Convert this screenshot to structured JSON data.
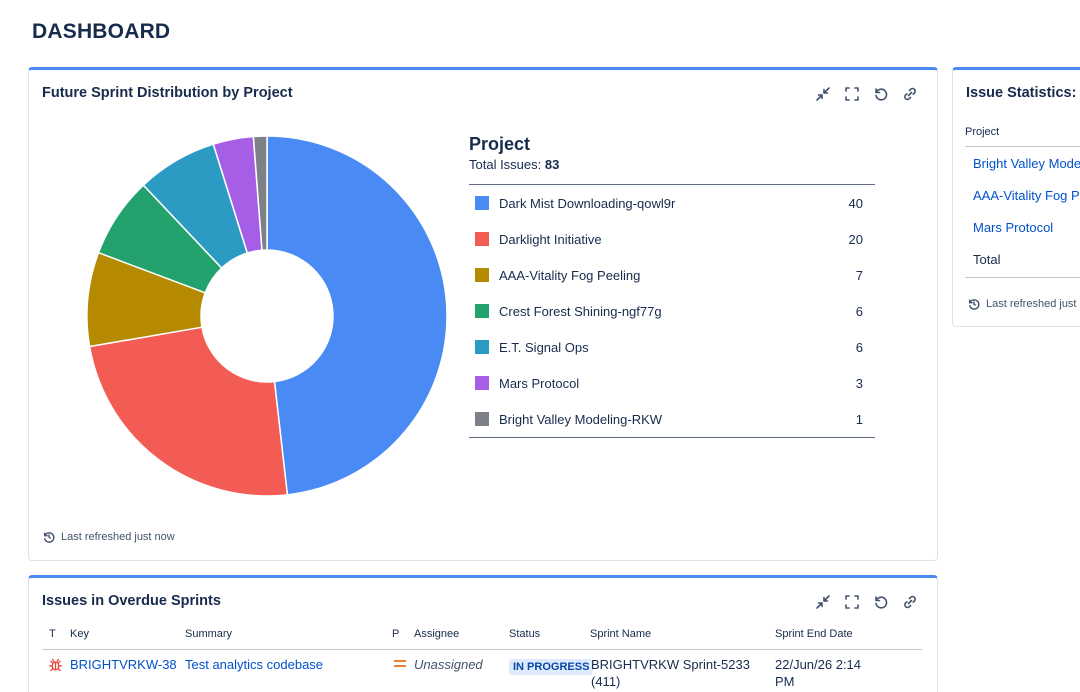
{
  "page": {
    "title": "DASHBOARD"
  },
  "gadget_sprint": {
    "title": "Future Sprint Distribution by Project",
    "legend_title": "Project",
    "total_label": "Total Issues:",
    "total_value": "83",
    "refresh_text": "Last refreshed just now",
    "chart_data": {
      "type": "pie",
      "categories": [
        "Dark Mist Downloading-qowl9r",
        "Darklight Initiative",
        "AAA-Vitality Fog Peeling",
        "Crest Forest Shining-ngf77g",
        "E.T. Signal Ops",
        "Mars Protocol",
        "Bright Valley Modeling-RKW"
      ],
      "values": [
        40,
        20,
        7,
        6,
        6,
        3,
        1
      ],
      "colors": [
        "#4a8af4",
        "#f25c54",
        "#b58a00",
        "#23a26d",
        "#2b9bc3",
        "#a65ee6",
        "#7d8086"
      ],
      "donut": true
    }
  },
  "gadget_stats": {
    "title": "Issue Statistics:",
    "column_header": "Project",
    "rows": [
      "Bright Valley Mode",
      "AAA-Vitality Fog P",
      "Mars Protocol"
    ],
    "total_label": "Total",
    "refresh_text": "Last refreshed just"
  },
  "gadget_overdue": {
    "title": "Issues in Overdue Sprints",
    "columns": [
      "T",
      "Key",
      "Summary",
      "P",
      "Assignee",
      "Status",
      "Sprint Name",
      "Sprint End Date"
    ],
    "rows": [
      {
        "type_icon": "bug-icon",
        "key": "BRIGHTVRKW-38",
        "summary": "Test analytics codebase",
        "priority_icon": "medium-priority-icon",
        "assignee": "Unassigned",
        "status": "IN PROGRESS",
        "sprint_line1": "BRIGHTVRKW Sprint-5233",
        "sprint_line2": "(411)",
        "end_line1": "22/Jun/26 2:14",
        "end_line2": "PM"
      }
    ]
  }
}
